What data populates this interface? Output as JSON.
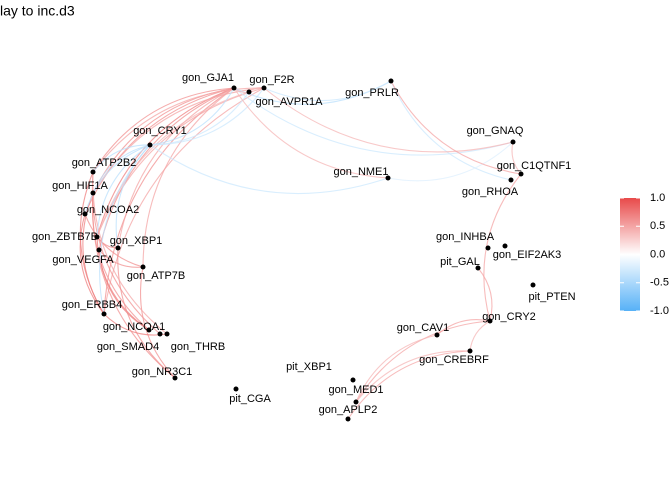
{
  "title": "lay to inc.d3",
  "nodes": [
    {
      "label": "gon_GJA1"
    },
    {
      "label": "gon_F2R"
    },
    {
      "label": "gon_AVPR1A"
    },
    {
      "label": "gon_PRLR"
    },
    {
      "label": "gon_CRY1"
    },
    {
      "label": "gon_GNAQ"
    },
    {
      "label": "gon_ATP2B2"
    },
    {
      "label": "gon_NME1"
    },
    {
      "label": "gon_C1QTNF1"
    },
    {
      "label": "gon_HIF1A"
    },
    {
      "label": "gon_RHOA"
    },
    {
      "label": "gon_NCOA2"
    },
    {
      "label": "gon_ZBTB7B"
    },
    {
      "label": "gon_XBP1"
    },
    {
      "label": "gon_VEGFA"
    },
    {
      "label": "gon_ATP7B"
    },
    {
      "label": "gon_INHBA"
    },
    {
      "label": "gon_EIF2AK3"
    },
    {
      "label": "pit_GAL"
    },
    {
      "label": "pit_PTEN"
    },
    {
      "label": "gon_ERBB4"
    },
    {
      "label": "gon_CRY2"
    },
    {
      "label": "gon_NCOA1"
    },
    {
      "label": "gon_CAV1"
    },
    {
      "label": "gon_SMAD4"
    },
    {
      "label": "gon_THRB"
    },
    {
      "label": "gon_CREBRF"
    },
    {
      "label": "gon_NR3C1"
    },
    {
      "label": "pit_XBP1"
    },
    {
      "label": "pit_CGA"
    },
    {
      "label": "gon_MED1"
    },
    {
      "label": "gon_APLP2"
    }
  ],
  "edges": [
    {
      "from": 0,
      "to": 6,
      "value": 0.6
    },
    {
      "from": 0,
      "to": 9,
      "value": 0.6
    },
    {
      "from": 0,
      "to": 11,
      "value": 0.6
    },
    {
      "from": 0,
      "to": 12,
      "value": 0.7
    },
    {
      "from": 0,
      "to": 14,
      "value": 0.6
    },
    {
      "from": 0,
      "to": 20,
      "value": 0.6
    },
    {
      "from": 0,
      "to": 13,
      "value": 0.5
    },
    {
      "from": 0,
      "to": 15,
      "value": 0.5
    },
    {
      "from": 1,
      "to": 6,
      "value": 0.5
    },
    {
      "from": 1,
      "to": 9,
      "value": 0.5
    },
    {
      "from": 1,
      "to": 12,
      "value": 0.5
    },
    {
      "from": 1,
      "to": 20,
      "value": 0.5
    },
    {
      "from": 2,
      "to": 12,
      "value": 0.4
    },
    {
      "from": 6,
      "to": 20,
      "value": 0.7
    },
    {
      "from": 9,
      "to": 20,
      "value": 0.7
    },
    {
      "from": 11,
      "to": 20,
      "value": 0.7
    },
    {
      "from": 12,
      "to": 22,
      "value": 0.7
    },
    {
      "from": 14,
      "to": 22,
      "value": 0.7
    },
    {
      "from": 13,
      "to": 27,
      "value": 0.6
    },
    {
      "from": 15,
      "to": 27,
      "value": 0.6
    },
    {
      "from": 20,
      "to": 25,
      "value": 0.7
    },
    {
      "from": 6,
      "to": 24,
      "value": 0.6
    },
    {
      "from": 9,
      "to": 27,
      "value": 0.6
    },
    {
      "from": 11,
      "to": 15,
      "value": 0.6
    },
    {
      "from": 12,
      "to": 13,
      "value": 0.6
    },
    {
      "from": 14,
      "to": 15,
      "value": 0.6
    },
    {
      "from": 9,
      "to": 22,
      "value": 0.6
    },
    {
      "from": 6,
      "to": 25,
      "value": 0.5
    },
    {
      "from": 4,
      "to": 0,
      "value": -0.4
    },
    {
      "from": 4,
      "to": 6,
      "value": -0.4
    },
    {
      "from": 4,
      "to": 9,
      "value": -0.4
    },
    {
      "from": 4,
      "to": 11,
      "value": -0.4
    },
    {
      "from": 4,
      "to": 12,
      "value": -0.4
    },
    {
      "from": 4,
      "to": 20,
      "value": -0.4
    },
    {
      "from": 4,
      "to": 13,
      "value": -0.4
    },
    {
      "from": 4,
      "to": 1,
      "value": -0.3
    },
    {
      "from": 4,
      "to": 2,
      "value": -0.3
    },
    {
      "from": 4,
      "to": 7,
      "value": -0.3
    },
    {
      "from": 0,
      "to": 3,
      "value": -0.4
    },
    {
      "from": 1,
      "to": 3,
      "value": -0.3
    },
    {
      "from": 3,
      "to": 10,
      "value": -0.3
    },
    {
      "from": 7,
      "to": 5,
      "value": -0.2
    },
    {
      "from": 0,
      "to": 5,
      "value": -0.3
    },
    {
      "from": 0,
      "to": 7,
      "value": 0.4
    },
    {
      "from": 1,
      "to": 5,
      "value": 0.4
    },
    {
      "from": 3,
      "to": 8,
      "value": 0.5
    },
    {
      "from": 5,
      "to": 8,
      "value": 0.4
    },
    {
      "from": 8,
      "to": 21,
      "value": 0.5
    },
    {
      "from": 21,
      "to": 23,
      "value": 0.5
    },
    {
      "from": 21,
      "to": 18,
      "value": 0.5
    },
    {
      "from": 21,
      "to": 30,
      "value": 0.5
    },
    {
      "from": 26,
      "to": 31,
      "value": 0.5
    },
    {
      "from": 23,
      "to": 30,
      "value": 0.4
    },
    {
      "from": 26,
      "to": 30,
      "value": 0.4
    },
    {
      "from": 21,
      "to": 26,
      "value": 0.4
    },
    {
      "from": 1,
      "to": 2,
      "value": 0.4
    },
    {
      "from": 0,
      "to": 2,
      "value": 0.4
    }
  ],
  "legend": {
    "lim": [
      -1,
      1
    ],
    "low_color": "#56b1f7",
    "mid_color": "#ffffff",
    "high_color": "#e84a4a",
    "ticks": [
      {
        "value": 1,
        "label": "1.0"
      },
      {
        "value": 0.5,
        "label": "0.5"
      },
      {
        "value": 0,
        "label": "0.0"
      },
      {
        "value": -0.5,
        "label": "-0.5"
      },
      {
        "value": -1,
        "label": "-1.0"
      }
    ]
  }
}
